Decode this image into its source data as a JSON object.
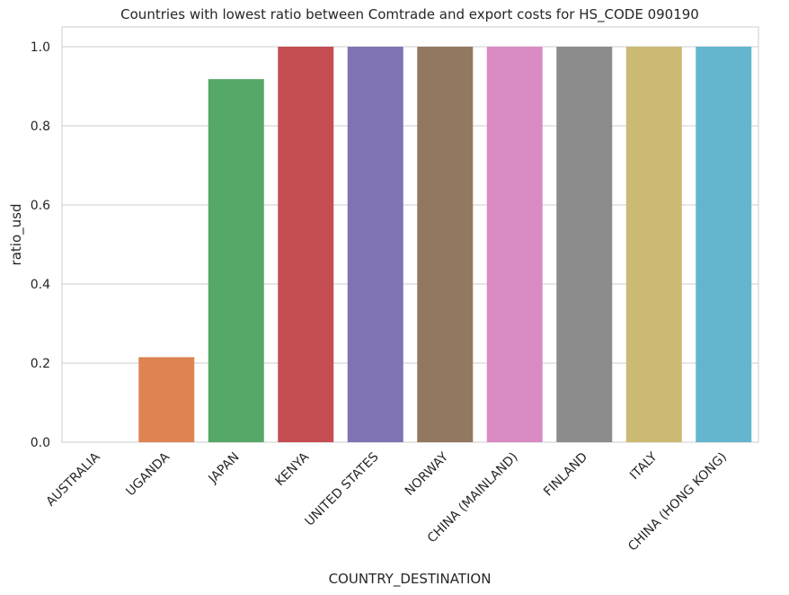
{
  "chart_data": {
    "type": "bar",
    "title": "Countries with lowest ratio between Comtrade and export costs for HS_CODE 090190",
    "xlabel": "COUNTRY_DESTINATION",
    "ylabel": "ratio_usd",
    "ylim": [
      0,
      1.05
    ],
    "yticks": [
      "0.0",
      "0.2",
      "0.4",
      "0.6",
      "0.8",
      "1.0"
    ],
    "grid": true,
    "categories": [
      "AUSTRALIA",
      "UGANDA",
      "JAPAN",
      "KENYA",
      "UNITED STATES",
      "NORWAY",
      "CHINA (MAINLAND)",
      "FINLAND",
      "ITALY",
      "CHINA (HONG KONG)"
    ],
    "values": [
      0.0,
      0.215,
      0.918,
      1.0,
      1.0,
      1.0,
      1.0,
      1.0,
      1.0,
      1.0
    ],
    "colors": [
      "#4C72B0",
      "#DD8452",
      "#55A868",
      "#C44E52",
      "#8172B3",
      "#937860",
      "#DA8BC3",
      "#8C8C8C",
      "#CCB974",
      "#64B5CD"
    ]
  }
}
